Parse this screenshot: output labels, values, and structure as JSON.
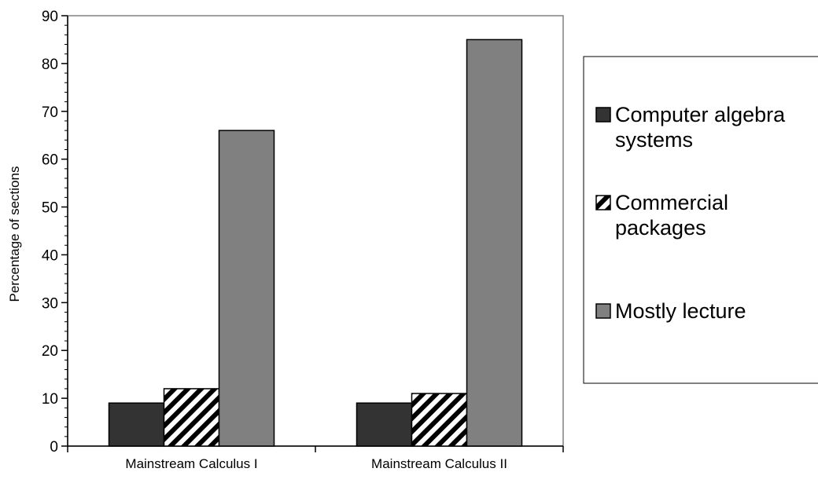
{
  "chart_data": {
    "type": "bar",
    "title": "",
    "xlabel": "",
    "ylabel": "Percentage of sections",
    "ylim": [
      0,
      90
    ],
    "y_major_step": 10,
    "y_minor_step": 2,
    "grid": false,
    "legend_position": "right",
    "categories": [
      "Mainstream Calculus I",
      "Mainstream Calculus II"
    ],
    "series": [
      {
        "name": "Computer algebra systems",
        "values": [
          9,
          9
        ],
        "color": "#333333",
        "fill_style": "solid"
      },
      {
        "name": "Commercial packages",
        "values": [
          12,
          11
        ],
        "color": "#000000",
        "fill_style": "diagonal-hatch"
      },
      {
        "name": "Mostly lecture",
        "values": [
          66,
          85
        ],
        "color": "#808080",
        "fill_style": "solid"
      }
    ],
    "legend": {
      "entries": [
        {
          "lines": [
            "Computer algebra",
            "systems"
          ]
        },
        {
          "lines": [
            "Commercial",
            "packages"
          ]
        },
        {
          "lines": [
            "Mostly lecture"
          ]
        }
      ]
    }
  }
}
